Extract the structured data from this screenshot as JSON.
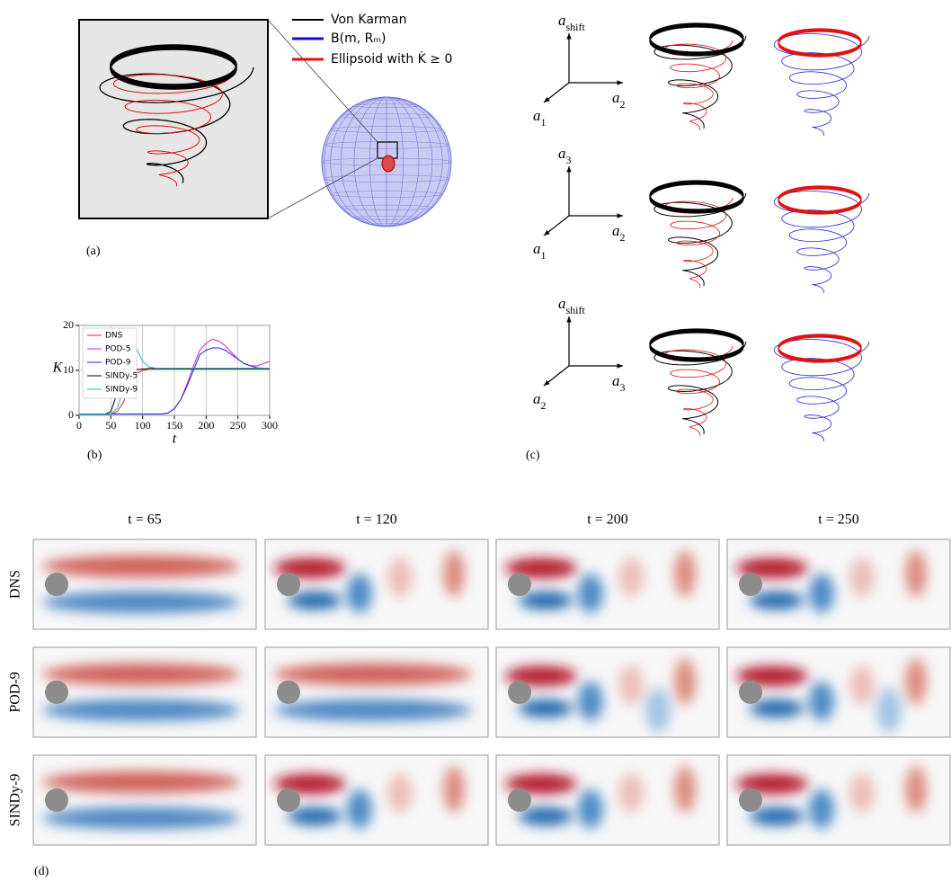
{
  "panel_a": {
    "label": "(a)",
    "legend": [
      "Von Karman",
      "B(m, Rₘ)",
      "Ellipsoid with K̇ ≥ 0"
    ]
  },
  "chart_data": {
    "type": "line",
    "label": "(b)",
    "ylabel": "K",
    "xlabel": "t",
    "x": [
      0,
      10,
      20,
      30,
      40,
      50,
      60,
      70,
      80,
      90,
      100,
      110,
      120,
      130,
      140,
      150,
      160,
      170,
      180,
      190,
      200,
      210,
      220,
      230,
      240,
      250,
      260,
      270,
      280,
      290,
      300
    ],
    "series": [
      {
        "name": "DNS",
        "color": "#d62728",
        "values": [
          0.2,
          0.2,
          0.2,
          0.2,
          0.2,
          0.2,
          0.8,
          3,
          7,
          9.3,
          10,
          10.3,
          10.3,
          10.3,
          10.3,
          10.3,
          10.3,
          10.3,
          10.3,
          10.3,
          10.3,
          10.3,
          10.3,
          10.3,
          10.3,
          10.3,
          10.3,
          10.3,
          10.3,
          10.3,
          10.3
        ]
      },
      {
        "name": "POD-5",
        "color": "#d020d0",
        "values": [
          0.3,
          0.3,
          0.3,
          0.3,
          0.3,
          0.3,
          0.3,
          0.3,
          0.3,
          0.3,
          0.3,
          0.3,
          0.3,
          0.3,
          0.5,
          1.5,
          3.5,
          7,
          11,
          14.5,
          16,
          17,
          16.5,
          15.5,
          14,
          12.5,
          11.5,
          11,
          11,
          11.5,
          12
        ]
      },
      {
        "name": "POD-9",
        "color": "#2020e0",
        "values": [
          0.3,
          0.3,
          0.3,
          0.3,
          0.3,
          0.3,
          0.3,
          0.3,
          0.3,
          0.3,
          0.3,
          0.3,
          0.3,
          0.3,
          0.5,
          1.5,
          3.5,
          6.5,
          10,
          13.5,
          14.5,
          15,
          15,
          14.5,
          13.5,
          12.5,
          11.5,
          11,
          10.6,
          10.5,
          10.5
        ]
      },
      {
        "name": "SINDy-5",
        "color": "#000000",
        "values": [
          0.2,
          0.2,
          0.2,
          0.2,
          0.2,
          0.8,
          5,
          13,
          12,
          10.2,
          10.3,
          10.4,
          10.4,
          10.4,
          10.4,
          10.4,
          10.4,
          10.4,
          10.4,
          10.4,
          10.4,
          10.4,
          10.4,
          10.4,
          10.4,
          10.4,
          10.4,
          10.4,
          10.4,
          10.4,
          10.4
        ]
      },
      {
        "name": "SINDy-9",
        "color": "#17becf",
        "values": [
          0.2,
          0.2,
          0.2,
          0.2,
          0.2,
          0.3,
          1.5,
          6,
          12,
          15,
          12,
          10.8,
          10.5,
          10.5,
          10.5,
          10.5,
          10.5,
          10.5,
          10.5,
          10.5,
          10.5,
          10.5,
          10.5,
          10.5,
          10.5,
          10.5,
          10.5,
          10.5,
          10.5,
          10.5,
          10.5
        ]
      }
    ],
    "xlim": [
      0,
      300
    ],
    "xticks": [
      0,
      50,
      100,
      150,
      200,
      250,
      300
    ],
    "ylim": [
      0,
      20
    ],
    "yticks": [
      0,
      10,
      20
    ],
    "grid": true,
    "legend": "upper left"
  },
  "panel_c": {
    "label": "(c)",
    "rows": [
      {
        "up": {
          "base": "a",
          "sub": "shift"
        },
        "right": {
          "base": "a",
          "sub": "2"
        },
        "down": {
          "base": "a",
          "sub": "1"
        }
      },
      {
        "up": {
          "base": "a",
          "sub": "3"
        },
        "right": {
          "base": "a",
          "sub": "2"
        },
        "down": {
          "base": "a",
          "sub": "1"
        }
      },
      {
        "up": {
          "base": "a",
          "sub": "shift"
        },
        "right": {
          "base": "a",
          "sub": "3"
        },
        "down": {
          "base": "a",
          "sub": "2"
        }
      }
    ]
  },
  "panel_d": {
    "label": "(d)",
    "columns": [
      "t = 65",
      "t = 120",
      "t = 200",
      "t = 250"
    ],
    "rows": [
      "DNS",
      "POD-9",
      "SINDy-9"
    ]
  }
}
